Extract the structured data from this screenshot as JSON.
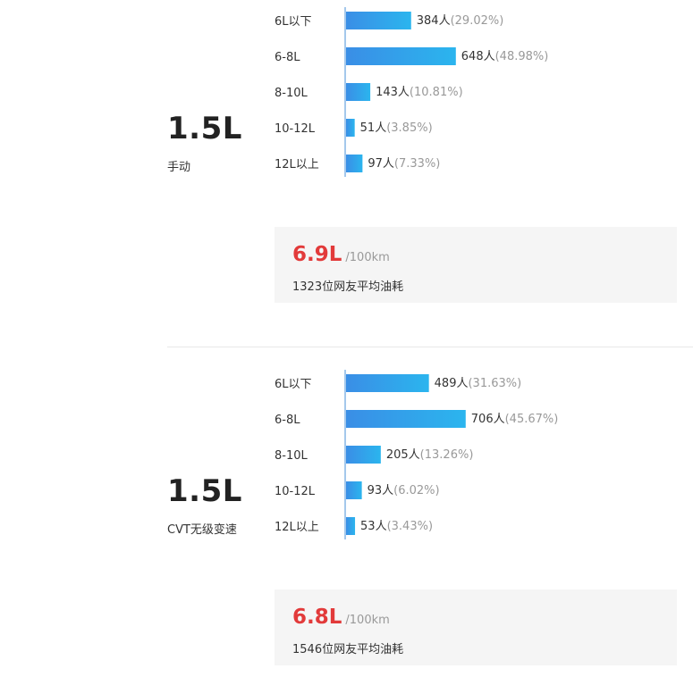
{
  "colors": {
    "bar_start": "#3a8ee6",
    "bar_end": "#2bb5ee",
    "axis": "#4a90d9",
    "accent_red": "#e23a3a",
    "summary_bg": "#f5f5f5"
  },
  "sections": [
    {
      "engine": "1.5L",
      "transmission": "手动",
      "average": "6.9L",
      "unit": "/100km",
      "user_count_text": "1323位网友平均油耗"
    },
    {
      "engine": "1.5L",
      "transmission": "CVT无级变速",
      "average": "6.8L",
      "unit": "/100km",
      "user_count_text": "1546位网友平均油耗"
    }
  ],
  "chart_data": [
    {
      "type": "bar",
      "orientation": "horizontal",
      "categories": [
        "6L以下",
        "6-8L",
        "8-10L",
        "10-12L",
        "12L以上"
      ],
      "values": [
        384,
        648,
        143,
        51,
        97
      ],
      "count_labels": [
        "384人",
        "648人",
        "143人",
        "51人",
        "97人"
      ],
      "percent_labels": [
        "(29.02%)",
        "(48.98%)",
        "(10.81%)",
        "(3.85%)",
        "(7.33%)"
      ],
      "percents": [
        29.02,
        48.98,
        10.81,
        3.85,
        7.33
      ]
    },
    {
      "type": "bar",
      "orientation": "horizontal",
      "categories": [
        "6L以下",
        "6-8L",
        "8-10L",
        "10-12L",
        "12L以上"
      ],
      "values": [
        489,
        706,
        205,
        93,
        53
      ],
      "count_labels": [
        "489人",
        "706人",
        "205人",
        "93人",
        "53人"
      ],
      "percent_labels": [
        "(31.63%)",
        "(45.67%)",
        "(13.26%)",
        "(6.02%)",
        "(3.43%)"
      ],
      "percents": [
        31.63,
        45.67,
        13.26,
        6.02,
        3.43
      ]
    }
  ]
}
